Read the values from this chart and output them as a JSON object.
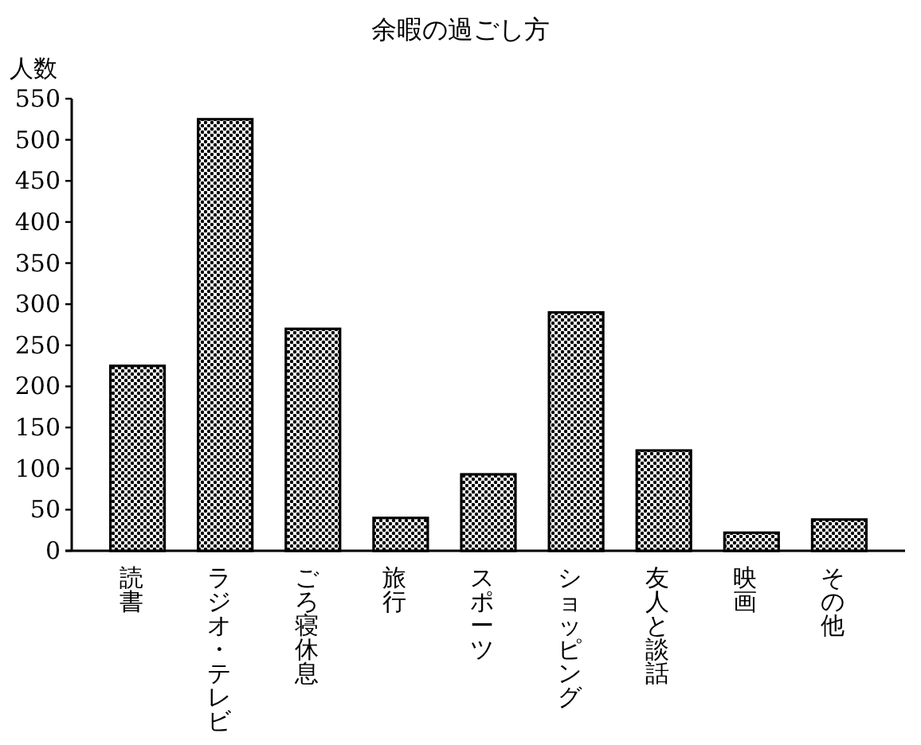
{
  "chart_data": {
    "type": "bar",
    "title": "余暇の過ごし方",
    "ylabel": "人数",
    "categories": [
      "読書",
      "ラジオ・テレビ",
      "ごろ寝休息",
      "旅行",
      "スポーツ",
      "ショッピング",
      "友人と談話",
      "映画",
      "その他"
    ],
    "values": [
      225,
      525,
      270,
      40,
      93,
      290,
      122,
      22,
      38
    ],
    "color": "#000000",
    "ylim": [
      0,
      550
    ],
    "yticks": [
      0,
      50,
      100,
      150,
      200,
      250,
      300,
      350,
      400,
      450,
      500,
      550
    ]
  }
}
